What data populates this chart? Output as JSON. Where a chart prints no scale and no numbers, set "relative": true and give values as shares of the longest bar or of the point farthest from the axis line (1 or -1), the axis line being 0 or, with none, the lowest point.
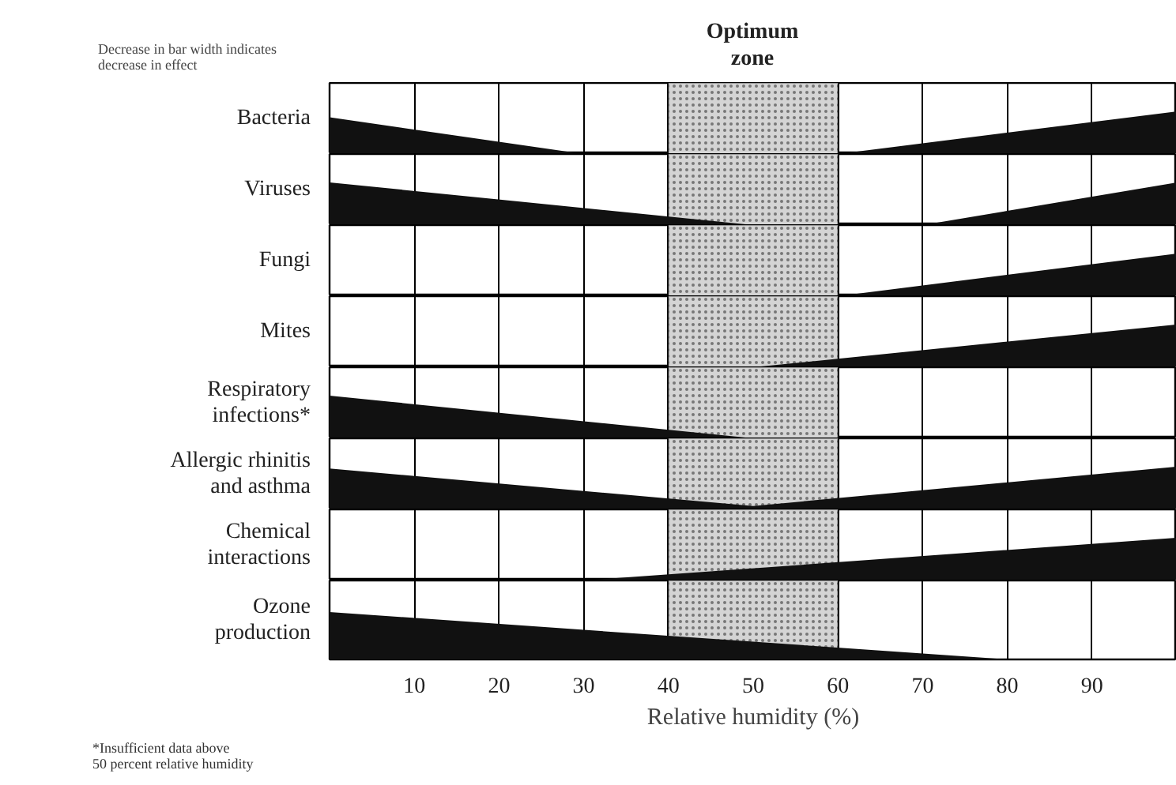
{
  "chart_data": [
    {
      "type": "area",
      "title": "Bacteria",
      "annotations": [
        "Decrease in bar width indicates decrease in effect"
      ],
      "x": [
        0,
        30,
        60,
        100
      ],
      "values": [
        0.86,
        0,
        0,
        1
      ],
      "relative": true,
      "color": "#111111",
      "xlim": [
        0,
        100
      ],
      "xticks": [
        10,
        20,
        30,
        40,
        50,
        60,
        70,
        80,
        90
      ],
      "grid": "x",
      "tick_labels": false,
      "bands": [
        {
          "axis": "x",
          "from": 40,
          "to": 60,
          "label": "Optimum zone",
          "color": "#d4d4d4"
        }
      ]
    },
    {
      "type": "area",
      "title": "Viruses",
      "x": [
        0,
        50,
        70,
        100
      ],
      "values": [
        1,
        0,
        0,
        1
      ],
      "relative": true,
      "color": "#111111",
      "xlim": [
        0,
        100
      ],
      "xticks": [
        10,
        20,
        30,
        40,
        50,
        60,
        70,
        80,
        90
      ],
      "grid": "x",
      "tick_labels": false,
      "bands": [
        {
          "axis": "x",
          "from": 40,
          "to": 60,
          "color": "#d4d4d4"
        }
      ]
    },
    {
      "type": "area",
      "title": "Fungi",
      "x": [
        0,
        60,
        100
      ],
      "values": [
        0,
        0,
        1
      ],
      "relative": true,
      "color": "#111111",
      "xlim": [
        0,
        100
      ],
      "xticks": [
        10,
        20,
        30,
        40,
        50,
        60,
        70,
        80,
        90
      ],
      "grid": "x",
      "tick_labels": false,
      "bands": [
        {
          "axis": "x",
          "from": 40,
          "to": 60,
          "color": "#d4d4d4"
        }
      ]
    },
    {
      "type": "area",
      "title": "Mites",
      "x": [
        0,
        50,
        100
      ],
      "values": [
        0,
        0,
        1
      ],
      "relative": true,
      "color": "#111111",
      "xlim": [
        0,
        100
      ],
      "xticks": [
        10,
        20,
        30,
        40,
        50,
        60,
        70,
        80,
        90
      ],
      "grid": "x",
      "tick_labels": false,
      "bands": [
        {
          "axis": "x",
          "from": 40,
          "to": 60,
          "color": "#d4d4d4"
        }
      ]
    },
    {
      "type": "area",
      "title": "Respiratory\ninfections*",
      "x": [
        0,
        50
      ],
      "values": [
        1,
        0
      ],
      "relative": true,
      "color": "#111111",
      "xlim": [
        0,
        100
      ],
      "xticks": [
        10,
        20,
        30,
        40,
        50,
        60,
        70,
        80,
        90
      ],
      "grid": "x",
      "tick_labels": false,
      "bands": [
        {
          "axis": "x",
          "from": 40,
          "to": 60,
          "color": "#d4d4d4"
        }
      ]
    },
    {
      "type": "area",
      "title": "Allergic rhinitis\nand asthma",
      "x": [
        0,
        50,
        100
      ],
      "values": [
        0.96,
        0.08,
        1
      ],
      "relative": true,
      "color": "#111111",
      "xlim": [
        0,
        100
      ],
      "xticks": [
        10,
        20,
        30,
        40,
        50,
        60,
        70,
        80,
        90
      ],
      "grid": "x",
      "tick_labels": false,
      "bands": [
        {
          "axis": "x",
          "from": 40,
          "to": 60,
          "color": "#d4d4d4"
        }
      ]
    },
    {
      "type": "area",
      "title": "Chemical\ninteractions",
      "x": [
        0,
        30,
        100
      ],
      "values": [
        0,
        0,
        1
      ],
      "relative": true,
      "color": "#111111",
      "xlim": [
        0,
        100
      ],
      "xticks": [
        10,
        20,
        30,
        40,
        50,
        60,
        70,
        80,
        90
      ],
      "grid": "x",
      "tick_labels": false,
      "bands": [
        {
          "axis": "x",
          "from": 40,
          "to": 60,
          "color": "#d4d4d4"
        }
      ]
    },
    {
      "type": "area",
      "title": "Ozone\nproduction",
      "xlabel": "Relative humidity (%)",
      "annotations": [
        "*Insufficient data above\n50 percent relative humidity"
      ],
      "x": [
        0,
        80,
        100
      ],
      "values": [
        1,
        0,
        0
      ],
      "relative": true,
      "color": "#111111",
      "xlim": [
        0,
        100
      ],
      "xticks": [
        10,
        20,
        30,
        40,
        50,
        60,
        70,
        80,
        90
      ],
      "grid": "x",
      "tick_labels": "x",
      "bands": [
        {
          "axis": "x",
          "from": 40,
          "to": 60,
          "color": "#d4d4d4"
        }
      ]
    }
  ]
}
